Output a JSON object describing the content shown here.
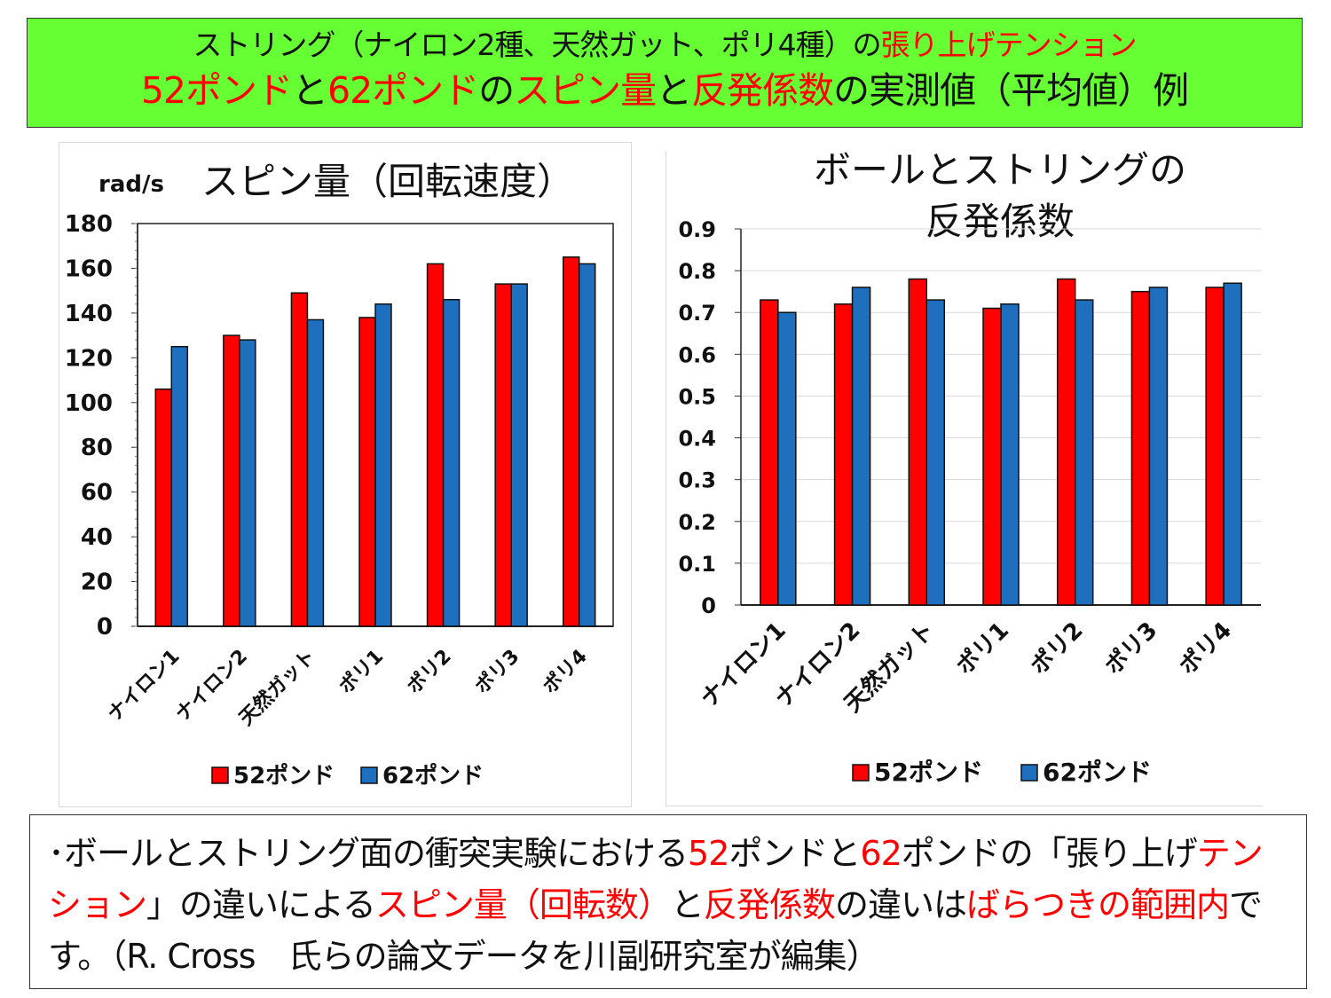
{
  "header": {
    "line1": [
      {
        "text": "ストリング（ナイロン2種、天然ガット、ポリ4種）の",
        "red": false
      },
      {
        "text": "張り上げテンション",
        "red": true
      }
    ],
    "line2": [
      {
        "text": "52ポンド",
        "red": true
      },
      {
        "text": "と",
        "red": false
      },
      {
        "text": "62ポンド",
        "red": true
      },
      {
        "text": "の",
        "red": false
      },
      {
        "text": "スピン量",
        "red": true
      },
      {
        "text": "と",
        "red": false
      },
      {
        "text": "反発係数",
        "red": true
      },
      {
        "text": "の実測値（平均値）例",
        "red": false
      }
    ]
  },
  "footer": {
    "segments": [
      {
        "text": "･ボールとストリング面の衝突実験における",
        "red": false
      },
      {
        "text": "52",
        "red": true
      },
      {
        "text": "ポンドと",
        "red": false
      },
      {
        "text": "62",
        "red": true
      },
      {
        "text": "ポンドの「張り上げ",
        "red": false
      },
      {
        "text": "テンション",
        "red": true
      },
      {
        "text": "」の違いによる",
        "red": false
      },
      {
        "text": "スピン量（回転数）",
        "red": true
      },
      {
        "text": "と",
        "red": false
      },
      {
        "text": "反発係数",
        "red": true
      },
      {
        "text": "の違いは",
        "red": false
      },
      {
        "text": "ばらつきの範囲内",
        "red": true
      },
      {
        "text": "です。（R. Cross　氏らの論文データを川副研究室が編集）",
        "red": false
      }
    ]
  },
  "colors": {
    "s52": "#ff0000",
    "s62": "#1f6fbf",
    "header_bg": "#66ff33"
  },
  "chart_data": [
    {
      "type": "bar",
      "title": "スピン量（回転速度）",
      "ylabel": "rad/s",
      "xlabel": "",
      "categories": [
        "ナイロン1",
        "ナイロン2",
        "天然ガット",
        "ポリ1",
        "ポリ2",
        "ポリ3",
        "ポリ4"
      ],
      "series": [
        {
          "name": "52ポンド",
          "values": [
            106,
            130,
            149,
            138,
            162,
            153,
            165
          ]
        },
        {
          "name": "62ポンド",
          "values": [
            125,
            128,
            137,
            144,
            146,
            153,
            162
          ]
        }
      ],
      "ylim": [
        0,
        180
      ],
      "yticks": [
        "0",
        "20",
        "40",
        "60",
        "80",
        "100",
        "120",
        "140",
        "160",
        "180"
      ],
      "grid": false,
      "legend": "bottom"
    },
    {
      "type": "bar",
      "title": [
        "ボールとストリングの",
        "反発係数"
      ],
      "ylabel": "",
      "xlabel": "",
      "categories": [
        "ナイロン1",
        "ナイロン2",
        "天然ガット",
        "ポリ1",
        "ポリ2",
        "ポリ3",
        "ポリ4"
      ],
      "series": [
        {
          "name": "52ポンド",
          "values": [
            0.73,
            0.72,
            0.78,
            0.71,
            0.78,
            0.75,
            0.76
          ]
        },
        {
          "name": "62ポンド",
          "values": [
            0.7,
            0.76,
            0.73,
            0.72,
            0.73,
            0.76,
            0.77
          ]
        }
      ],
      "ylim": [
        0,
        0.9
      ],
      "yticks": [
        "0",
        "0.1",
        "0.2",
        "0.3",
        "0.4",
        "0.5",
        "0.6",
        "0.7",
        "0.8",
        "0.9"
      ],
      "grid": true,
      "legend": "bottom"
    }
  ]
}
